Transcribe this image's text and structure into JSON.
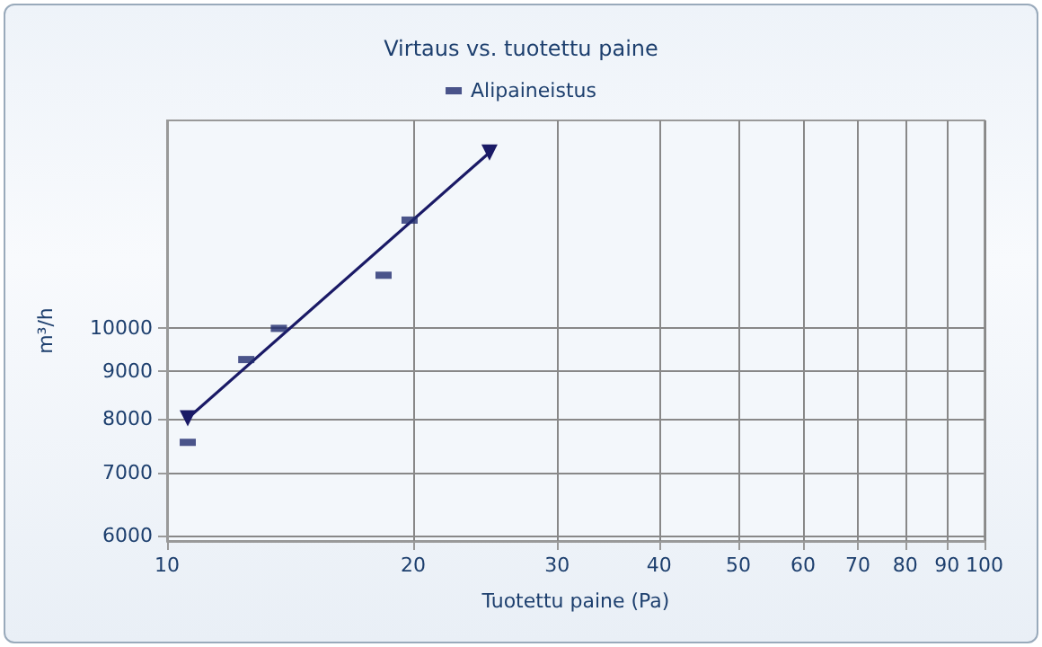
{
  "chart_data": {
    "type": "scatter",
    "title": "Virtaus vs. tuotettu paine",
    "xlabel": "Tuotettu paine (Pa)",
    "ylabel": "m³/h",
    "log": "xy",
    "grid": true,
    "legend": "top",
    "xlim": [
      10,
      100
    ],
    "xticks": [
      10,
      20,
      30,
      40,
      50,
      60,
      70,
      80,
      90,
      100
    ],
    "ylim": [
      5920,
      16700
    ],
    "yticks": [
      6000,
      7000,
      8000,
      9000,
      10000
    ],
    "series": [
      {
        "name": "Alipaineistus",
        "marker": "square",
        "color": "#1f2a6e",
        "x": [
          10.6,
          12.5,
          13.7,
          18.4,
          19.8
        ],
        "values": [
          7550,
          9260,
          10000,
          11400,
          13060
        ]
      },
      {
        "type": "line",
        "marker": "triangle",
        "line_style": "solid",
        "color": "#1a1a66",
        "x": [
          10.6,
          24.8
        ],
        "values": [
          8010,
          15430
        ]
      }
    ]
  }
}
